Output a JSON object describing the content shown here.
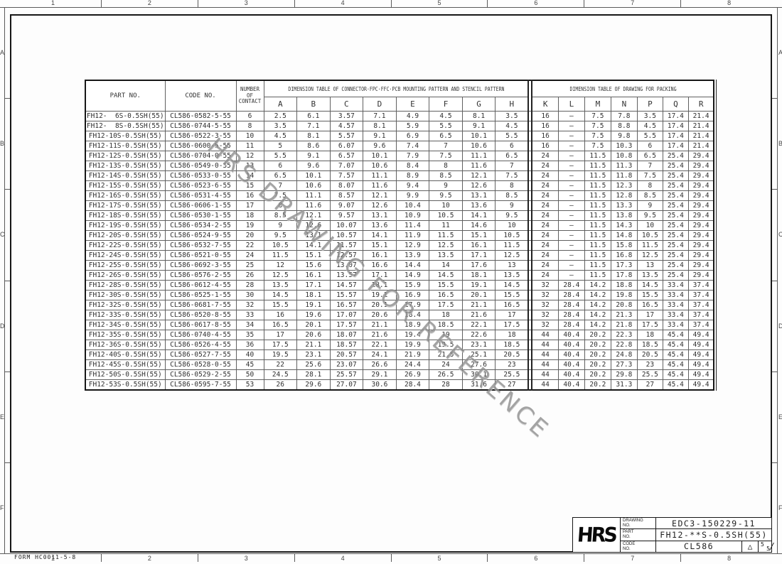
{
  "watermark": "HRS DRAWING FOR REFERENCE",
  "form_label": "FORM HC0011-5-8",
  "zones": {
    "top": [
      "1",
      "2",
      "3",
      "4",
      "5",
      "6",
      "7",
      "8"
    ],
    "bottom": [
      "1",
      "2",
      "3",
      "4",
      "5",
      "6",
      "7",
      "8"
    ],
    "left": [
      "A",
      "B",
      "C",
      "D",
      "E",
      "F"
    ],
    "right": [
      "A",
      "B",
      "C",
      "D",
      "E",
      "F"
    ]
  },
  "table": {
    "headers": {
      "part_no": "PART NO.",
      "code_no": "CODE NO.",
      "contact_lines": [
        "NUMBER",
        "OF",
        "CONTACT"
      ],
      "group_left": "DIMENSION TABLE OF CONNECTOR·FPC·FFC·PCB MOUNTING PATTERN AND STENCIL PATTERN",
      "group_right": "DIMENSION TABLE OF DRAWING FOR PACKING",
      "dim_cols": [
        "A",
        "B",
        "C",
        "D",
        "E",
        "F",
        "G",
        "H"
      ],
      "pack_cols": [
        "K",
        "L",
        "M",
        "N",
        "P",
        "Q",
        "R"
      ]
    },
    "rows": [
      [
        "FH12-  6S-0.5SH(55)",
        "CL586-0582-5-55",
        "6",
        "2.5",
        "6.1",
        "3.57",
        "7.1",
        "4.9",
        "4.5",
        "8.1",
        "3.5",
        "16",
        "—",
        "7.5",
        "7.8",
        "3.5",
        "17.4",
        "21.4"
      ],
      [
        "FH12-  8S-0.5SH(55)",
        "CL586-0744-5-55",
        "8",
        "3.5",
        "7.1",
        "4.57",
        "8.1",
        "5.9",
        "5.5",
        "9.1",
        "4.5",
        "16",
        "—",
        "7.5",
        "8.8",
        "4.5",
        "17.4",
        "21.4"
      ],
      [
        "FH12-10S-0.5SH(55)",
        "CL586-0522-3-55",
        "10",
        "4.5",
        "8.1",
        "5.57",
        "9.1",
        "6.9",
        "6.5",
        "10.1",
        "5.5",
        "16",
        "—",
        "7.5",
        "9.8",
        "5.5",
        "17.4",
        "21.4"
      ],
      [
        "FH12-11S-0.5SH(55)",
        "CL586-0600-5-55",
        "11",
        "5",
        "8.6",
        "6.07",
        "9.6",
        "7.4",
        "7",
        "10.6",
        "6",
        "16",
        "—",
        "7.5",
        "10.3",
        "6",
        "17.4",
        "21.4"
      ],
      [
        "FH12-12S-0.5SH(55)",
        "CL586-0704-0-55",
        "12",
        "5.5",
        "9.1",
        "6.57",
        "10.1",
        "7.9",
        "7.5",
        "11.1",
        "6.5",
        "24",
        "—",
        "11.5",
        "10.8",
        "6.5",
        "25.4",
        "29.4"
      ],
      [
        "FH12-13S-0.5SH(55)",
        "CL586-0549-0-55",
        "13",
        "6",
        "9.6",
        "7.07",
        "10.6",
        "8.4",
        "8",
        "11.6",
        "7",
        "24",
        "—",
        "11.5",
        "11.3",
        "7",
        "25.4",
        "29.4"
      ],
      [
        "FH12-14S-0.5SH(55)",
        "CL586-0533-0-55",
        "14",
        "6.5",
        "10.1",
        "7.57",
        "11.1",
        "8.9",
        "8.5",
        "12.1",
        "7.5",
        "24",
        "—",
        "11.5",
        "11.8",
        "7.5",
        "25.4",
        "29.4"
      ],
      [
        "FH12-15S-0.5SH(55)",
        "CL586-0523-6-55",
        "15",
        "7",
        "10.6",
        "8.07",
        "11.6",
        "9.4",
        "9",
        "12.6",
        "8",
        "24",
        "—",
        "11.5",
        "12.3",
        "8",
        "25.4",
        "29.4"
      ],
      [
        "FH12-16S-0.5SH(55)",
        "CL586-0531-4-55",
        "16",
        "7.5",
        "11.1",
        "8.57",
        "12.1",
        "9.9",
        "9.5",
        "13.1",
        "8.5",
        "24",
        "—",
        "11.5",
        "12.8",
        "8.5",
        "25.4",
        "29.4"
      ],
      [
        "FH12-17S-0.5SH(55)",
        "CL586-0606-1-55",
        "17",
        "8",
        "11.6",
        "9.07",
        "12.6",
        "10.4",
        "10",
        "13.6",
        "9",
        "24",
        "—",
        "11.5",
        "13.3",
        "9",
        "25.4",
        "29.4"
      ],
      [
        "FH12-18S-0.5SH(55)",
        "CL586-0530-1-55",
        "18",
        "8.5",
        "12.1",
        "9.57",
        "13.1",
        "10.9",
        "10.5",
        "14.1",
        "9.5",
        "24",
        "—",
        "11.5",
        "13.8",
        "9.5",
        "25.4",
        "29.4"
      ],
      [
        "FH12-19S-0.5SH(55)",
        "CL586-0534-2-55",
        "19",
        "9",
        "12.6",
        "10.07",
        "13.6",
        "11.4",
        "11",
        "14.6",
        "10",
        "24",
        "—",
        "11.5",
        "14.3",
        "10",
        "25.4",
        "29.4"
      ],
      [
        "FH12-20S-0.5SH(55)",
        "CL586-0524-9-55",
        "20",
        "9.5",
        "13.1",
        "10.57",
        "14.1",
        "11.9",
        "11.5",
        "15.1",
        "10.5",
        "24",
        "—",
        "11.5",
        "14.8",
        "10.5",
        "25.4",
        "29.4"
      ],
      [
        "FH12-22S-0.5SH(55)",
        "CL586-0532-7-55",
        "22",
        "10.5",
        "14.1",
        "11.57",
        "15.1",
        "12.9",
        "12.5",
        "16.1",
        "11.5",
        "24",
        "—",
        "11.5",
        "15.8",
        "11.5",
        "25.4",
        "29.4"
      ],
      [
        "FH12-24S-0.5SH(55)",
        "CL586-0521-0-55",
        "24",
        "11.5",
        "15.1",
        "12.57",
        "16.1",
        "13.9",
        "13.5",
        "17.1",
        "12.5",
        "24",
        "—",
        "11.5",
        "16.8",
        "12.5",
        "25.4",
        "29.4"
      ],
      [
        "FH12-25S-0.5SH(55)",
        "CL586-0692-3-55",
        "25",
        "12",
        "15.6",
        "13.07",
        "16.6",
        "14.4",
        "14",
        "17.6",
        "13",
        "24",
        "—",
        "11.5",
        "17.3",
        "13",
        "25.4",
        "29.4"
      ],
      [
        "FH12-26S-0.5SH(55)",
        "CL586-0576-2-55",
        "26",
        "12.5",
        "16.1",
        "13.57",
        "17.1",
        "14.9",
        "14.5",
        "18.1",
        "13.5",
        "24",
        "—",
        "11.5",
        "17.8",
        "13.5",
        "25.4",
        "29.4"
      ],
      [
        "FH12-28S-0.5SH(55)",
        "CL586-0612-4-55",
        "28",
        "13.5",
        "17.1",
        "14.57",
        "18.1",
        "15.9",
        "15.5",
        "19.1",
        "14.5",
        "32",
        "28.4",
        "14.2",
        "18.8",
        "14.5",
        "33.4",
        "37.4"
      ],
      [
        "FH12-30S-0.5SH(55)",
        "CL586-0525-1-55",
        "30",
        "14.5",
        "18.1",
        "15.57",
        "19.1",
        "16.9",
        "16.5",
        "20.1",
        "15.5",
        "32",
        "28.4",
        "14.2",
        "19.8",
        "15.5",
        "33.4",
        "37.4"
      ],
      [
        "FH12-32S-0.5SH(55)",
        "CL586-0681-7-55",
        "32",
        "15.5",
        "19.1",
        "16.57",
        "20.1",
        "17.9",
        "17.5",
        "21.1",
        "16.5",
        "32",
        "28.4",
        "14.2",
        "20.8",
        "16.5",
        "33.4",
        "37.4"
      ],
      [
        "FH12-33S-0.5SH(55)",
        "CL586-0520-8-55",
        "33",
        "16",
        "19.6",
        "17.07",
        "20.6",
        "18.4",
        "18",
        "21.6",
        "17",
        "32",
        "28.4",
        "14.2",
        "21.3",
        "17",
        "33.4",
        "37.4"
      ],
      [
        "FH12-34S-0.5SH(55)",
        "CL586-0617-8-55",
        "34",
        "16.5",
        "20.1",
        "17.57",
        "21.1",
        "18.9",
        "18.5",
        "22.1",
        "17.5",
        "32",
        "28.4",
        "14.2",
        "21.8",
        "17.5",
        "33.4",
        "37.4"
      ],
      [
        "FH12-35S-0.5SH(55)",
        "CL586-0740-4-55",
        "35",
        "17",
        "20.6",
        "18.07",
        "21.6",
        "19.4",
        "19",
        "22.6",
        "18",
        "44",
        "40.4",
        "20.2",
        "22.3",
        "18",
        "45.4",
        "49.4"
      ],
      [
        "FH12-36S-0.5SH(55)",
        "CL586-0526-4-55",
        "36",
        "17.5",
        "21.1",
        "18.57",
        "22.1",
        "19.9",
        "19.5",
        "23.1",
        "18.5",
        "44",
        "40.4",
        "20.2",
        "22.8",
        "18.5",
        "45.4",
        "49.4"
      ],
      [
        "FH12-40S-0.5SH(55)",
        "CL586-0527-7-55",
        "40",
        "19.5",
        "23.1",
        "20.57",
        "24.1",
        "21.9",
        "21.5",
        "25.1",
        "20.5",
        "44",
        "40.4",
        "20.2",
        "24.8",
        "20.5",
        "45.4",
        "49.4"
      ],
      [
        "FH12-45S-0.5SH(55)",
        "CL586-0528-0-55",
        "45",
        "22",
        "25.6",
        "23.07",
        "26.6",
        "24.4",
        "24",
        "27.6",
        "23",
        "44",
        "40.4",
        "20.2",
        "27.3",
        "23",
        "45.4",
        "49.4"
      ],
      [
        "FH12-50S-0.5SH(55)",
        "CL586-0529-2-55",
        "50",
        "24.5",
        "28.1",
        "25.57",
        "29.1",
        "26.9",
        "26.5",
        "30.1",
        "25.5",
        "44",
        "40.4",
        "20.2",
        "29.8",
        "25.5",
        "45.4",
        "49.4"
      ],
      [
        "FH12-53S-0.5SH(55)",
        "CL586-0595-7-55",
        "53",
        "26",
        "29.6",
        "27.07",
        "30.6",
        "28.4",
        "28",
        "31.6",
        "27",
        "44",
        "40.4",
        "20.2",
        "31.3",
        "27",
        "45.4",
        "49.4"
      ]
    ]
  },
  "title_block": {
    "logo": "HRS",
    "rows": [
      {
        "label_line1": "DRAWING",
        "label_line2": "NO.",
        "value": "EDC3-150229-11"
      },
      {
        "label_line1": "PART",
        "label_line2": "NO.",
        "value": "FH12-**S-0.5SH(55)"
      },
      {
        "label_line1": "CODE",
        "label_line2": "NO.",
        "value": "CL586"
      }
    ],
    "revision_triangle": "△",
    "sheet_current": "5",
    "sheet_total": "5"
  },
  "colors": {
    "line": "#161616",
    "grid": "#606060",
    "text": "#2f2f2f",
    "watermark": "#8d8d8d"
  }
}
